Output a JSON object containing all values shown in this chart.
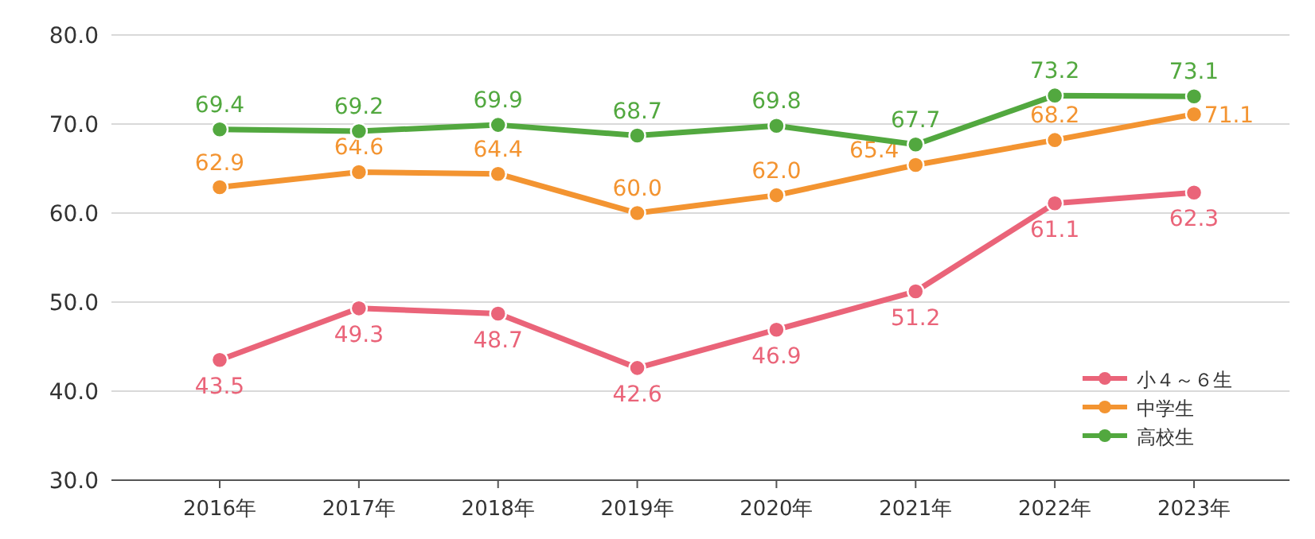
{
  "chart_data": {
    "type": "line",
    "categories": [
      "2016年",
      "2017年",
      "2018年",
      "2019年",
      "2020年",
      "2021年",
      "2022年",
      "2023年"
    ],
    "ylim": [
      30,
      80
    ],
    "yticks": [
      {
        "value": 30,
        "label": "30.0"
      },
      {
        "value": 40,
        "label": "40.0"
      },
      {
        "value": 50,
        "label": "50.0"
      },
      {
        "value": 60,
        "label": "60.0"
      },
      {
        "value": 70,
        "label": "70.0"
      },
      {
        "value": 80,
        "label": "80.0"
      }
    ],
    "grid": "y",
    "legend": "bottom right",
    "marker": "circle",
    "line_style": "solid",
    "series": [
      {
        "name": "小４～６生",
        "color": "#ea6479",
        "values": [
          43.5,
          49.3,
          48.7,
          42.6,
          46.9,
          51.2,
          61.1,
          62.3
        ],
        "value_labels": [
          "43.5",
          "49.3",
          "48.7",
          "42.6",
          "46.9",
          "51.2",
          "61.1",
          "62.3"
        ]
      },
      {
        "name": "中学生",
        "color": "#f39431",
        "values": [
          62.9,
          64.6,
          64.4,
          60.0,
          62.0,
          65.4,
          68.2,
          71.1
        ],
        "value_labels": [
          "62.9",
          "64.6",
          "64.4",
          "60.0",
          "62.0",
          "65.4",
          "68.2",
          "71.1"
        ]
      },
      {
        "name": "高校生",
        "color": "#52a83f",
        "values": [
          69.4,
          69.2,
          69.9,
          68.7,
          69.8,
          67.7,
          73.2,
          73.1
        ],
        "value_labels": [
          "69.4",
          "69.2",
          "69.9",
          "68.7",
          "69.8",
          "67.7",
          "73.2",
          "73.1"
        ]
      }
    ]
  }
}
